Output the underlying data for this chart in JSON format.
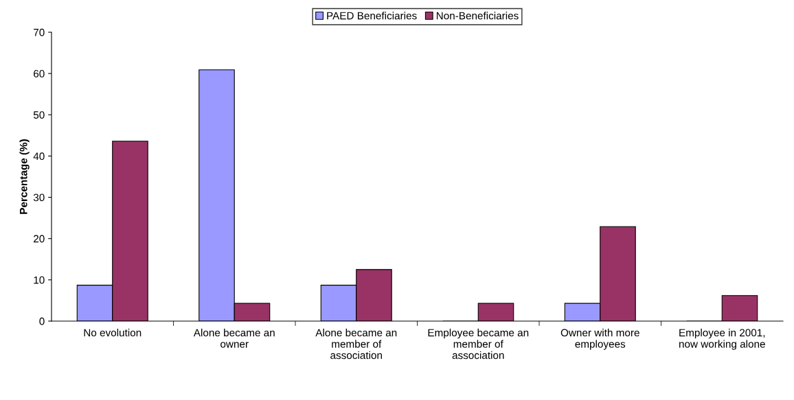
{
  "chart_data": {
    "type": "bar",
    "ylabel": "Percentage (%)",
    "categories": [
      "No evolution",
      "Alone became an owner",
      "Alone became an member of association",
      "Employee became an member of association",
      "Owner with more employees",
      "Employee in 2001, now working alone"
    ],
    "series": [
      {
        "name": "PAED Beneficiaries",
        "color": "#9999ff",
        "values": [
          8.7,
          60.9,
          8.7,
          0,
          4.3,
          0
        ]
      },
      {
        "name": "Non-Beneficiaries",
        "color": "#993366",
        "values": [
          43.6,
          4.3,
          12.5,
          4.3,
          22.9,
          6.2
        ]
      }
    ],
    "ylim": [
      0,
      70
    ],
    "yticks": [
      0,
      10,
      20,
      30,
      40,
      50,
      60,
      70
    ],
    "grid": false,
    "legend": "top"
  }
}
